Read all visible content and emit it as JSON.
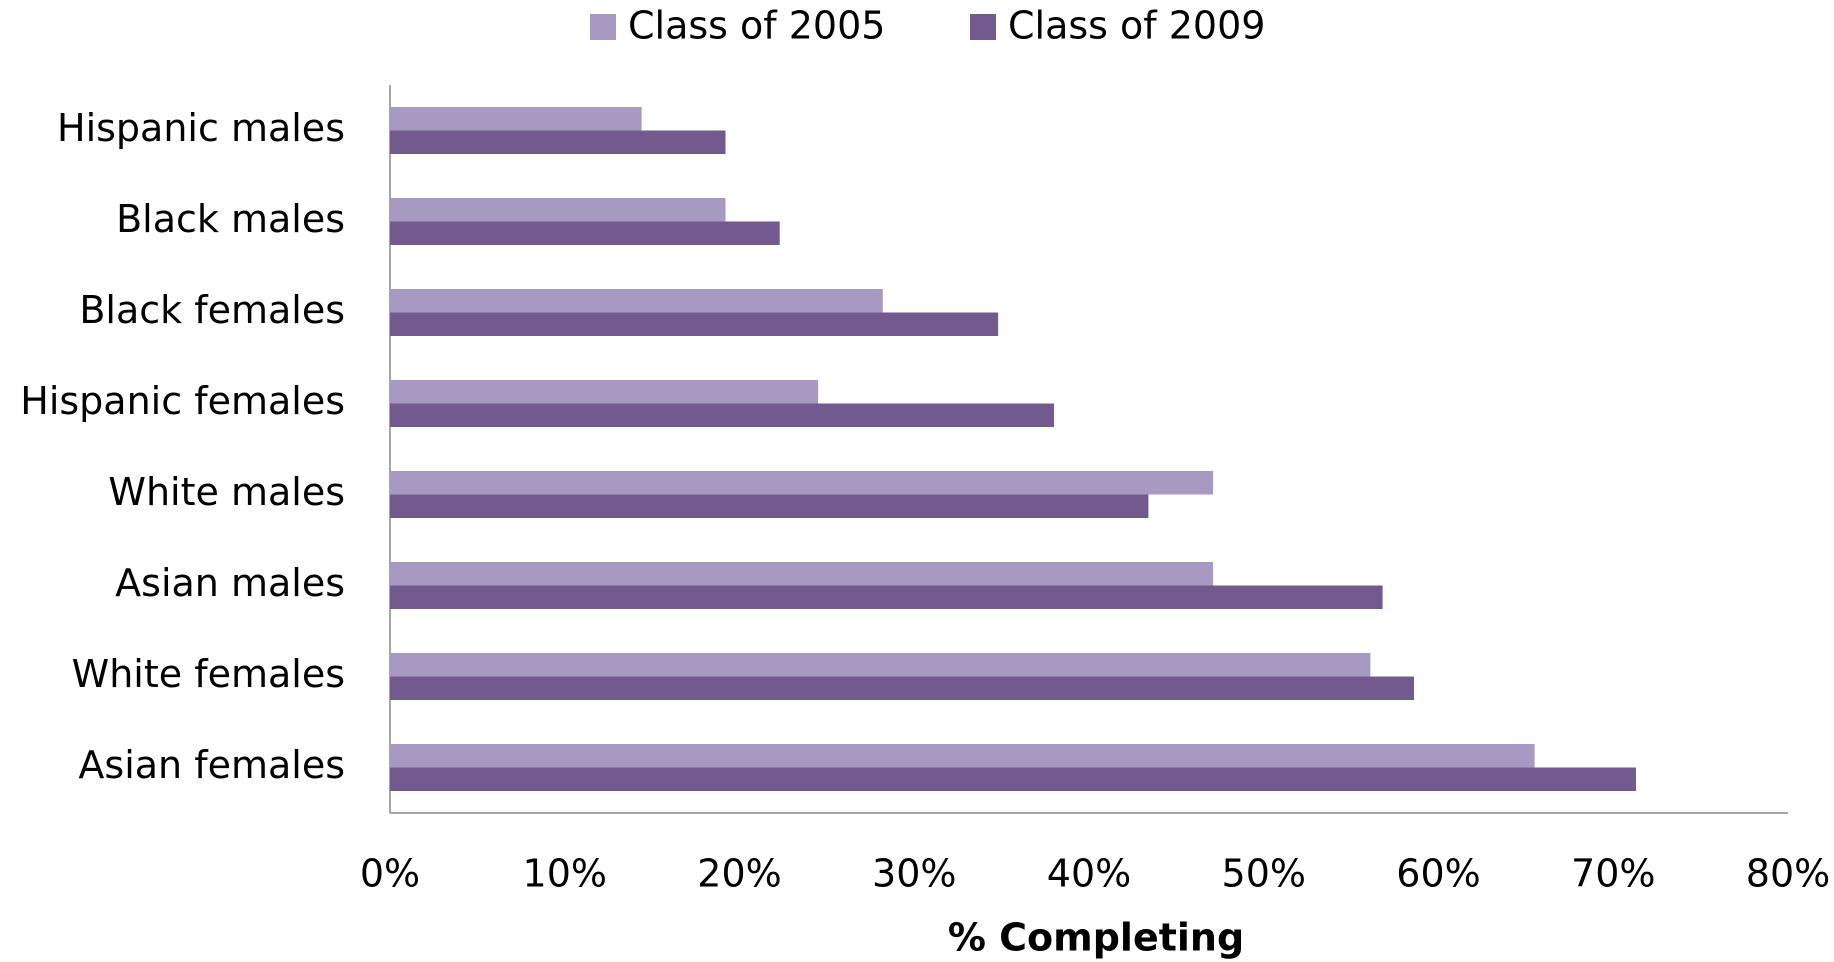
{
  "chart_data": {
    "type": "barh",
    "x_label": "% Completing",
    "categories": [
      "Hispanic males",
      "Black males",
      "Black females",
      "Hispanic females",
      "White males",
      "Asian males",
      "White females",
      "Asian females"
    ],
    "series": [
      {
        "name": "Class of 2005",
        "color": "#a899c2",
        "values": [
          14.4,
          19.2,
          28.2,
          24.5,
          47.1,
          47.1,
          56.1,
          65.5
        ]
      },
      {
        "name": "Class of 2009",
        "color": "#725a8f",
        "values": [
          19.2,
          22.3,
          34.8,
          38.0,
          43.4,
          56.8,
          58.6,
          71.3
        ]
      }
    ],
    "xlim": [
      0,
      80
    ],
    "xticks": [
      {
        "value": 0,
        "label": "0%"
      },
      {
        "value": 10,
        "label": "10%"
      },
      {
        "value": 20,
        "label": "20%"
      },
      {
        "value": 30,
        "label": "30%"
      },
      {
        "value": 40,
        "label": "40%"
      },
      {
        "value": 50,
        "label": "50%"
      },
      {
        "value": 60,
        "label": "60%"
      },
      {
        "value": 70,
        "label": "70%"
      },
      {
        "value": 80,
        "label": "80%"
      }
    ],
    "legend": "top"
  }
}
